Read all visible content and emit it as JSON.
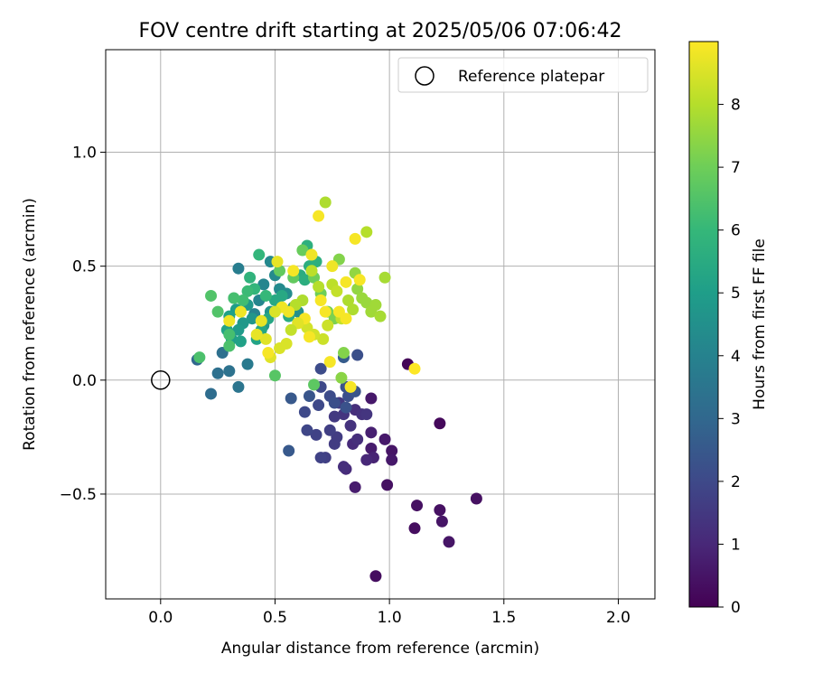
{
  "chart_data": {
    "type": "scatter",
    "title": "FOV centre drift starting at 2025/05/06 07:06:42",
    "xlabel": "Angular distance from reference (arcmin)",
    "ylabel": "Rotation from reference (arcmin)",
    "xlim": [
      -0.24,
      2.16
    ],
    "ylim": [
      -0.96,
      1.45
    ],
    "xticks": [
      {
        "value": 0.0,
        "label": "0.0"
      },
      {
        "value": 0.5,
        "label": "0.5"
      },
      {
        "value": 1.0,
        "label": "1.0"
      },
      {
        "value": 1.5,
        "label": "1.5"
      },
      {
        "value": 2.0,
        "label": "2.0"
      }
    ],
    "yticks": [
      {
        "value": -0.5,
        "label": "−0.5"
      },
      {
        "value": 0.0,
        "label": "0.0"
      },
      {
        "value": 0.5,
        "label": "0.5"
      },
      {
        "value": 1.0,
        "label": "1.0"
      }
    ],
    "grid": true,
    "legend": {
      "position": "top-right",
      "entries": [
        {
          "label": "Reference platepar",
          "marker": "open-circle"
        }
      ]
    },
    "reference_point": {
      "x": 0.0,
      "y": 0.0
    },
    "colorbar": {
      "label": "Hours from first FF file",
      "colormap": "viridis",
      "range": [
        0,
        9
      ],
      "ticks": [
        {
          "value": 0,
          "label": "0"
        },
        {
          "value": 1,
          "label": "1"
        },
        {
          "value": 2,
          "label": "2"
        },
        {
          "value": 3,
          "label": "3"
        },
        {
          "value": 4,
          "label": "4"
        },
        {
          "value": 5,
          "label": "5"
        },
        {
          "value": 6,
          "label": "6"
        },
        {
          "value": 7,
          "label": "7"
        },
        {
          "value": 8,
          "label": "8"
        }
      ]
    },
    "points_columns": [
      "x",
      "y",
      "hours"
    ],
    "points": [
      [
        0.94,
        -0.86,
        0.3
      ],
      [
        1.11,
        -0.65,
        0.3
      ],
      [
        1.12,
        -0.55,
        0.4
      ],
      [
        1.22,
        -0.57,
        0.4
      ],
      [
        1.23,
        -0.62,
        0.5
      ],
      [
        1.26,
        -0.71,
        0.5
      ],
      [
        1.38,
        -0.52,
        0.4
      ],
      [
        0.99,
        -0.46,
        0.4
      ],
      [
        1.22,
        -0.19,
        0.2
      ],
      [
        1.08,
        0.07,
        0.1
      ],
      [
        1.01,
        -0.31,
        0.5
      ],
      [
        1.01,
        -0.35,
        0.6
      ],
      [
        0.98,
        -0.26,
        0.6
      ],
      [
        0.92,
        -0.3,
        0.7
      ],
      [
        0.92,
        -0.23,
        0.8
      ],
      [
        0.92,
        -0.08,
        0.6
      ],
      [
        0.93,
        -0.34,
        0.9
      ],
      [
        0.9,
        -0.35,
        1.0
      ],
      [
        0.85,
        -0.47,
        0.7
      ],
      [
        0.84,
        -0.28,
        1.1
      ],
      [
        0.86,
        -0.26,
        1.2
      ],
      [
        0.85,
        -0.13,
        1.2
      ],
      [
        0.88,
        -0.15,
        1.3
      ],
      [
        0.9,
        -0.15,
        1.4
      ],
      [
        0.81,
        -0.39,
        1.1
      ],
      [
        0.8,
        -0.38,
        1.2
      ],
      [
        0.83,
        -0.2,
        1.3
      ],
      [
        0.8,
        -0.15,
        1.4
      ],
      [
        0.78,
        -0.1,
        1.5
      ],
      [
        0.76,
        -0.16,
        1.5
      ],
      [
        0.77,
        -0.25,
        1.6
      ],
      [
        0.76,
        -0.28,
        1.6
      ],
      [
        0.74,
        -0.22,
        1.7
      ],
      [
        0.72,
        -0.34,
        1.7
      ],
      [
        0.7,
        -0.34,
        1.8
      ],
      [
        0.68,
        -0.24,
        1.8
      ],
      [
        0.64,
        -0.22,
        1.9
      ],
      [
        0.63,
        -0.14,
        2.0
      ],
      [
        0.69,
        -0.11,
        2.0
      ],
      [
        0.7,
        -0.03,
        2.0
      ],
      [
        0.7,
        0.05,
        2.1
      ],
      [
        0.74,
        -0.07,
        2.1
      ],
      [
        0.76,
        -0.1,
        2.2
      ],
      [
        0.82,
        -0.07,
        2.2
      ],
      [
        0.81,
        -0.12,
        2.3
      ],
      [
        0.81,
        -0.03,
        2.3
      ],
      [
        0.85,
        -0.05,
        2.4
      ],
      [
        0.65,
        -0.07,
        2.4
      ],
      [
        0.57,
        -0.08,
        2.5
      ],
      [
        0.56,
        -0.31,
        2.5
      ],
      [
        0.86,
        0.11,
        2.2
      ],
      [
        0.8,
        0.1,
        2.6
      ],
      [
        0.16,
        0.09,
        3.0
      ],
      [
        0.22,
        -0.06,
        3.2
      ],
      [
        0.25,
        0.03,
        3.3
      ],
      [
        0.3,
        0.04,
        3.4
      ],
      [
        0.34,
        -0.03,
        3.5
      ],
      [
        0.27,
        0.12,
        3.3
      ],
      [
        0.38,
        0.07,
        3.7
      ],
      [
        0.34,
        0.49,
        3.8
      ],
      [
        0.41,
        0.29,
        4.0
      ],
      [
        0.43,
        0.35,
        4.1
      ],
      [
        0.45,
        0.42,
        4.1
      ],
      [
        0.48,
        0.52,
        4.2
      ],
      [
        0.5,
        0.46,
        4.3
      ],
      [
        0.52,
        0.4,
        4.3
      ],
      [
        0.55,
        0.38,
        4.4
      ],
      [
        0.58,
        0.32,
        4.5
      ],
      [
        0.6,
        0.3,
        4.5
      ],
      [
        0.48,
        0.3,
        4.6
      ],
      [
        0.45,
        0.24,
        4.7
      ],
      [
        0.4,
        0.27,
        4.7
      ],
      [
        0.38,
        0.33,
        4.8
      ],
      [
        0.36,
        0.25,
        4.8
      ],
      [
        0.34,
        0.22,
        4.9
      ],
      [
        0.33,
        0.31,
        5.0
      ],
      [
        0.31,
        0.18,
        5.0
      ],
      [
        0.35,
        0.17,
        5.1
      ],
      [
        0.3,
        0.28,
        5.1
      ],
      [
        0.29,
        0.22,
        5.2
      ],
      [
        0.42,
        0.18,
        5.2
      ],
      [
        0.44,
        0.22,
        5.3
      ],
      [
        0.47,
        0.27,
        5.3
      ],
      [
        0.5,
        0.35,
        5.4
      ],
      [
        0.53,
        0.37,
        5.4
      ],
      [
        0.56,
        0.28,
        5.5
      ],
      [
        0.61,
        0.46,
        5.5
      ],
      [
        0.63,
        0.44,
        5.6
      ],
      [
        0.65,
        0.5,
        5.6
      ],
      [
        0.64,
        0.59,
        5.7
      ],
      [
        0.68,
        0.52,
        5.7
      ],
      [
        0.39,
        0.45,
        5.8
      ],
      [
        0.43,
        0.55,
        5.9
      ],
      [
        0.41,
        0.4,
        5.9
      ],
      [
        0.46,
        0.37,
        6.0
      ],
      [
        0.38,
        0.39,
        6.1
      ],
      [
        0.36,
        0.35,
        6.2
      ],
      [
        0.32,
        0.36,
        6.3
      ],
      [
        0.3,
        0.2,
        6.3
      ],
      [
        0.3,
        0.15,
        6.4
      ],
      [
        0.17,
        0.1,
        6.4
      ],
      [
        0.25,
        0.3,
        6.5
      ],
      [
        0.22,
        0.37,
        6.5
      ],
      [
        0.5,
        0.02,
        6.6
      ],
      [
        0.67,
        -0.02,
        6.7
      ],
      [
        0.52,
        0.48,
        6.8
      ],
      [
        0.58,
        0.45,
        6.8
      ],
      [
        0.62,
        0.57,
        6.9
      ],
      [
        0.67,
        0.45,
        7.0
      ],
      [
        0.7,
        0.38,
        7.0
      ],
      [
        0.73,
        0.3,
        7.1
      ],
      [
        0.76,
        0.27,
        7.2
      ],
      [
        0.78,
        0.53,
        7.3
      ],
      [
        0.8,
        0.12,
        7.3
      ],
      [
        0.79,
        0.01,
        7.4
      ],
      [
        0.85,
        0.47,
        7.5
      ],
      [
        0.86,
        0.4,
        7.5
      ],
      [
        0.88,
        0.36,
        7.6
      ],
      [
        0.9,
        0.34,
        7.6
      ],
      [
        0.92,
        0.3,
        7.7
      ],
      [
        0.94,
        0.33,
        7.7
      ],
      [
        0.96,
        0.28,
        7.8
      ],
      [
        0.98,
        0.45,
        7.8
      ],
      [
        0.82,
        0.35,
        7.9
      ],
      [
        0.84,
        0.31,
        7.9
      ],
      [
        0.62,
        0.35,
        7.9
      ],
      [
        0.59,
        0.33,
        8.0
      ],
      [
        0.72,
        0.78,
        7.9
      ],
      [
        0.9,
        0.65,
        8.0
      ],
      [
        0.69,
        0.41,
        8.0
      ],
      [
        0.66,
        0.48,
        8.1
      ],
      [
        0.75,
        0.42,
        8.1
      ],
      [
        0.77,
        0.39,
        8.2
      ],
      [
        0.79,
        0.27,
        8.2
      ],
      [
        0.73,
        0.24,
        8.3
      ],
      [
        0.71,
        0.18,
        8.3
      ],
      [
        0.67,
        0.2,
        8.4
      ],
      [
        0.64,
        0.23,
        8.4
      ],
      [
        0.55,
        0.16,
        8.5
      ],
      [
        0.52,
        0.14,
        8.5
      ],
      [
        0.48,
        0.1,
        8.6
      ],
      [
        0.46,
        0.18,
        8.6
      ],
      [
        0.42,
        0.2,
        8.7
      ],
      [
        0.44,
        0.26,
        8.7
      ],
      [
        0.35,
        0.3,
        8.8
      ],
      [
        0.3,
        0.26,
        8.8
      ],
      [
        0.53,
        0.32,
        8.8
      ],
      [
        0.56,
        0.3,
        8.8
      ],
      [
        0.6,
        0.25,
        8.9
      ],
      [
        0.63,
        0.27,
        8.9
      ],
      [
        0.65,
        0.19,
        8.9
      ],
      [
        0.69,
        0.72,
        8.9
      ],
      [
        0.85,
        0.62,
        8.9
      ],
      [
        0.87,
        0.44,
        8.9
      ],
      [
        0.81,
        0.43,
        8.9
      ],
      [
        0.78,
        0.3,
        8.9
      ],
      [
        0.81,
        0.27,
        8.9
      ],
      [
        0.74,
        0.08,
        8.9
      ],
      [
        0.83,
        -0.03,
        8.9
      ],
      [
        1.11,
        0.05,
        9.0
      ],
      [
        0.51,
        0.52,
        8.7
      ],
      [
        0.66,
        0.55,
        8.8
      ],
      [
        0.75,
        0.5,
        8.8
      ],
      [
        0.7,
        0.35,
        8.9
      ],
      [
        0.72,
        0.3,
        8.9
      ],
      [
        0.58,
        0.48,
        8.9
      ],
      [
        0.6,
        0.25,
        8.6
      ],
      [
        0.5,
        0.3,
        8.5
      ],
      [
        0.47,
        0.12,
        8.9
      ],
      [
        0.57,
        0.22,
        8.2
      ]
    ]
  }
}
